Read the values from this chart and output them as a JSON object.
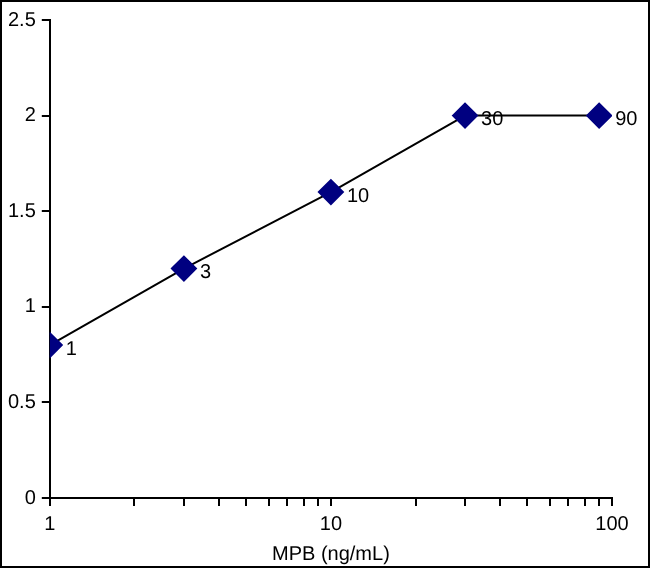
{
  "chart_data": {
    "type": "line",
    "xlabel": "MPB (ng/mL)",
    "log": "x",
    "x": [
      1,
      3,
      10,
      30,
      90
    ],
    "series": [
      {
        "color": "#000080",
        "values": [
          0.8,
          1.2,
          1.6,
          2.0,
          2.0
        ]
      }
    ],
    "annotations": [
      {
        "text": "1",
        "x": 1,
        "y": 0.8
      },
      {
        "text": "3",
        "x": 3,
        "y": 1.2
      },
      {
        "text": "10",
        "x": 10,
        "y": 1.6
      },
      {
        "text": "30",
        "x": 30,
        "y": 2.0
      },
      {
        "text": "90",
        "x": 90,
        "y": 2.0
      }
    ],
    "xlim": [
      1,
      100
    ],
    "xticks": [
      1,
      {
        "value": 2,
        "label": null
      },
      {
        "value": 3,
        "label": null
      },
      {
        "value": 4,
        "label": null
      },
      {
        "value": 5,
        "label": null
      },
      {
        "value": 6,
        "label": null
      },
      {
        "value": 7,
        "label": null
      },
      {
        "value": 8,
        "label": null
      },
      {
        "value": 9,
        "label": null
      },
      10,
      {
        "value": 20,
        "label": null
      },
      {
        "value": 30,
        "label": null
      },
      {
        "value": 40,
        "label": null
      },
      {
        "value": 50,
        "label": null
      },
      {
        "value": 60,
        "label": null
      },
      {
        "value": 70,
        "label": null
      },
      {
        "value": 80,
        "label": null
      },
      {
        "value": 90,
        "label": null
      },
      100
    ],
    "ylim": [
      0,
      2.5
    ],
    "yticks": [
      0,
      0.5,
      1,
      1.5,
      2,
      2.5
    ],
    "grid": false,
    "legend": false,
    "marker": "diamond",
    "line_style": "solid"
  }
}
